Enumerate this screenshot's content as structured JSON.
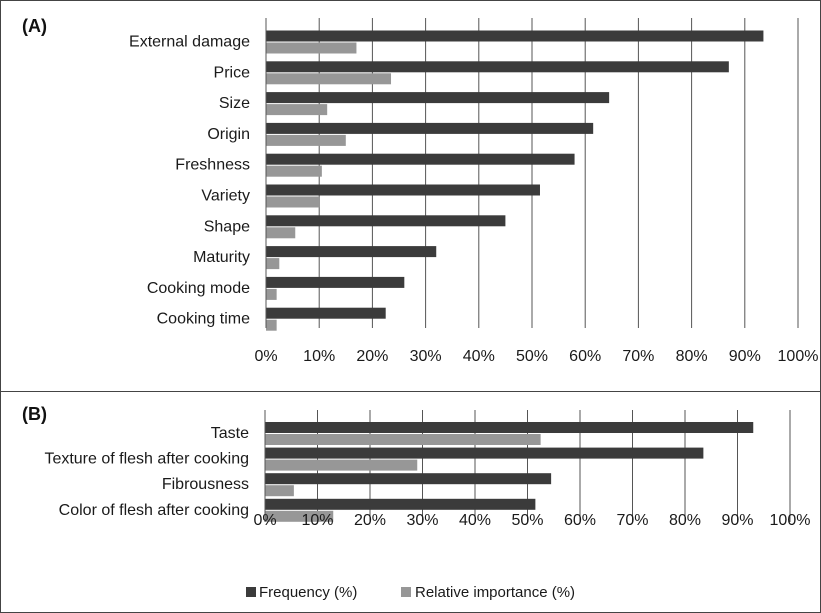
{
  "colors": {
    "frequency": "#3b3b3b",
    "relative_importance": "#979797",
    "grid": "#555555",
    "border": "#444444"
  },
  "legend": {
    "frequency_label": "Frequency (%)",
    "relative_label": "Relative importance (%)"
  },
  "chart_data": [
    {
      "type": "bar",
      "orientation": "horizontal",
      "panel_label": "(A)",
      "categories": [
        "External damage",
        "Price",
        "Size",
        "Origin",
        "Freshness",
        "Variety",
        "Shape",
        "Maturity",
        "Cooking mode",
        "Cooking time"
      ],
      "series": [
        {
          "name": "Frequency (%)",
          "values": [
            93.5,
            87,
            64.5,
            61.5,
            58,
            51.5,
            45,
            32,
            26,
            22.5
          ]
        },
        {
          "name": "Relative importance (%)",
          "values": [
            17,
            23.5,
            11.5,
            15,
            10.5,
            10,
            5.5,
            2.5,
            2,
            2
          ]
        }
      ],
      "xlim": [
        0,
        100
      ],
      "xticks": [
        "0%",
        "10%",
        "20%",
        "30%",
        "40%",
        "50%",
        "60%",
        "70%",
        "80%",
        "90%",
        "100%"
      ],
      "grid": true
    },
    {
      "type": "bar",
      "orientation": "horizontal",
      "panel_label": "(B)",
      "categories": [
        "Taste",
        "Texture of flesh after cooking",
        "Fibrousness",
        "Color of flesh after cooking"
      ],
      "series": [
        {
          "name": "Frequency (%)",
          "values": [
            93,
            83.5,
            54.5,
            51.5
          ]
        },
        {
          "name": "Relative importance (%)",
          "values": [
            52.5,
            29,
            5.5,
            13
          ]
        }
      ],
      "xlim": [
        0,
        100
      ],
      "xticks": [
        "0%",
        "10%",
        "20%",
        "30%",
        "40%",
        "50%",
        "60%",
        "70%",
        "80%",
        "90%",
        "100%"
      ],
      "grid": true,
      "legend_position": "bottom"
    }
  ]
}
